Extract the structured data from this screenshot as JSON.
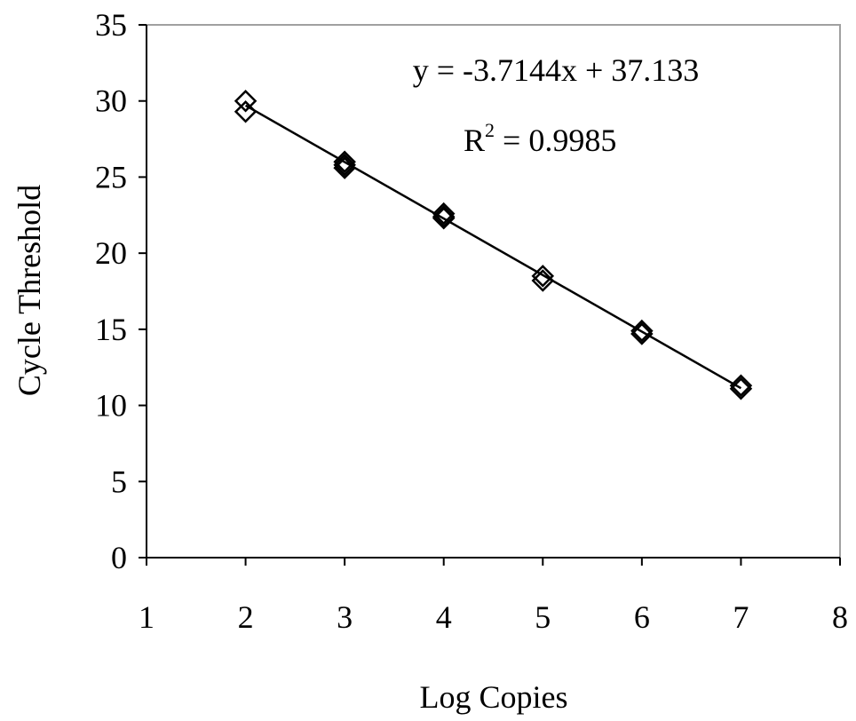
{
  "chart_data": {
    "type": "scatter",
    "xlabel": "Log Copies",
    "ylabel": "Cycle Threshold",
    "xlim": [
      1,
      8
    ],
    "ylim": [
      0,
      35
    ],
    "x_ticks": [
      "1",
      "2",
      "3",
      "4",
      "5",
      "6",
      "7",
      "8"
    ],
    "y_ticks": [
      "0",
      "5",
      "10",
      "15",
      "20",
      "25",
      "30",
      "35"
    ],
    "grid": false,
    "legend": "none",
    "series": [
      {
        "marker": "open-diamond",
        "points": [
          {
            "x": 2,
            "y": 30.0
          },
          {
            "x": 2,
            "y": 29.3
          },
          {
            "x": 3,
            "y": 26.0
          },
          {
            "x": 3,
            "y": 25.8
          },
          {
            "x": 3,
            "y": 25.6
          },
          {
            "x": 4,
            "y": 22.6
          },
          {
            "x": 4,
            "y": 22.4
          },
          {
            "x": 4,
            "y": 22.3
          },
          {
            "x": 5,
            "y": 18.5
          },
          {
            "x": 5,
            "y": 18.2
          },
          {
            "x": 6,
            "y": 14.9
          },
          {
            "x": 6,
            "y": 14.7
          },
          {
            "x": 7,
            "y": 11.3
          },
          {
            "x": 7,
            "y": 11.1
          }
        ]
      }
    ],
    "trendline": {
      "slope": -3.7144,
      "intercept": 37.133,
      "x_range": [
        2,
        7
      ]
    },
    "annotations": {
      "equation": "y = -3.7144x + 37.133",
      "r2_prefix": "R",
      "r2_superscript": "2",
      "r2_value": " = 0.9985"
    },
    "colors": {
      "plot_border": "#a0a0a0",
      "axis": "#000000",
      "marker": "#000000",
      "line": "#000000"
    }
  }
}
